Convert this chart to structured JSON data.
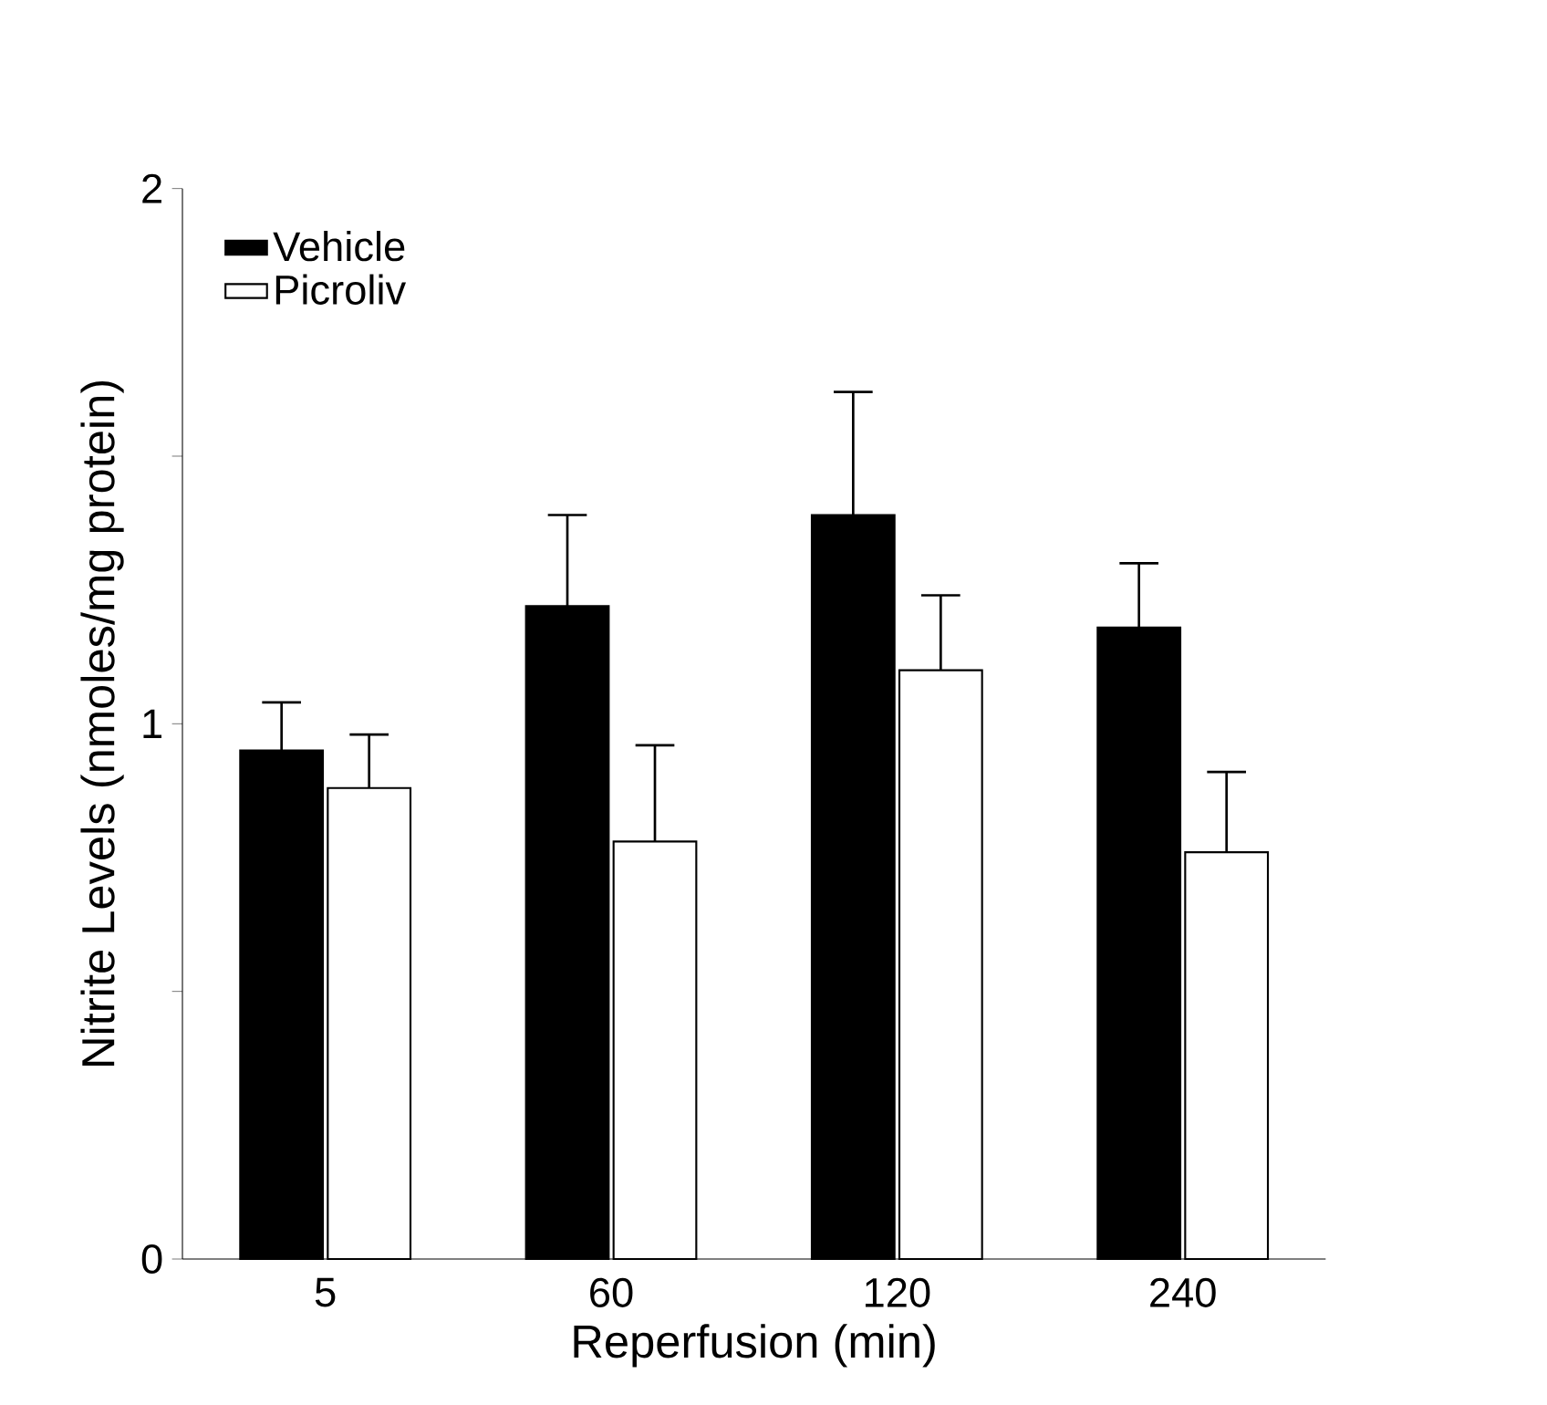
{
  "chart_data": {
    "type": "bar",
    "xlabel": "Reperfusion (min)",
    "ylabel": "Nitrite Levels (nmoles/mg protein)",
    "categories": [
      "5",
      "60",
      "120",
      "240"
    ],
    "series": [
      {
        "name": "Vehicle",
        "color": "#000000",
        "values": [
          0.95,
          1.22,
          1.39,
          1.18
        ],
        "errors": [
          [
            0.95,
            1.04
          ],
          [
            1.22,
            1.39
          ],
          [
            1.39,
            1.62
          ],
          [
            1.18,
            1.3
          ]
        ]
      },
      {
        "name": "Picroliv",
        "color": "#ffffff",
        "values": [
          0.88,
          0.78,
          1.1,
          0.76
        ],
        "errors": [
          [
            0.88,
            0.98
          ],
          [
            0.78,
            0.96
          ],
          [
            1.1,
            1.24
          ],
          [
            0.76,
            0.91
          ]
        ]
      }
    ],
    "ylim": [
      0,
      2
    ],
    "yticks": [
      0,
      {
        "value": 0.5,
        "label": null
      },
      1,
      {
        "value": 1.5,
        "label": null
      },
      2
    ],
    "legend": "top left",
    "grid": false
  }
}
